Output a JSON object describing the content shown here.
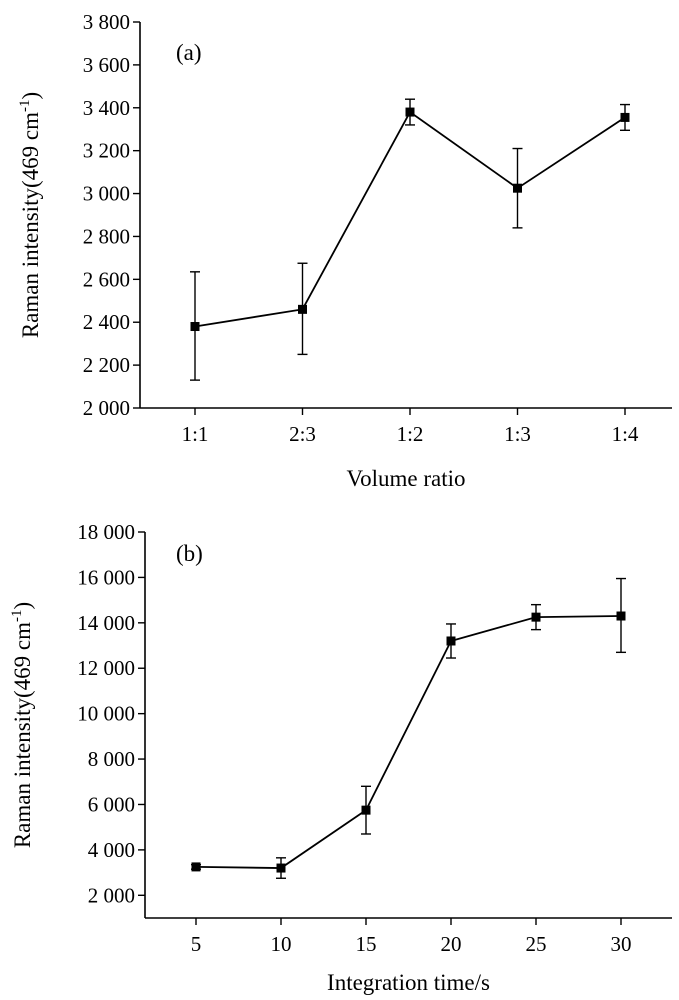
{
  "chart_data": [
    {
      "type": "line",
      "panel_label": "(a)",
      "xlabel": "Volume ratio",
      "ylabel_main": "Raman intensity(469 cm",
      "ylabel_sup": "-1",
      "ylabel_end": ")",
      "categories": [
        "1:1",
        "2:3",
        "1:2",
        "1:3",
        "1:4"
      ],
      "x_ticks": [
        "1:1",
        "2:3",
        "1:2",
        "1:3",
        "1:4"
      ],
      "ylim": [
        2000,
        3800
      ],
      "y_ticks": [
        2000,
        2200,
        2400,
        2600,
        2800,
        3000,
        3200,
        3400,
        3600,
        3800
      ],
      "y_tick_labels": [
        "2 000",
        "2 200",
        "2 400",
        "2 600",
        "2 800",
        "3 000",
        "3 200",
        "3 400",
        "3 600",
        "3 800"
      ],
      "grid": false,
      "series": [
        {
          "values": [
            2380,
            2460,
            3380,
            3025,
            3355
          ],
          "err_low": [
            2130,
            2250,
            3320,
            2840,
            3295
          ],
          "err_high": [
            2635,
            2675,
            3440,
            3210,
            3415
          ]
        }
      ]
    },
    {
      "type": "line",
      "panel_label": "(b)",
      "xlabel": "Integration time/s",
      "ylabel_main": "Raman intensity(469 cm",
      "ylabel_sup": "-1",
      "ylabel_end": ")",
      "x": [
        5,
        10,
        15,
        20,
        25,
        30
      ],
      "x_ticks": [
        "5",
        "10",
        "15",
        "20",
        "25",
        "30"
      ],
      "xlim": [
        2,
        33
      ],
      "ylim": [
        1000,
        18000
      ],
      "y_ticks": [
        2000,
        4000,
        6000,
        8000,
        10000,
        12000,
        14000,
        16000,
        18000
      ],
      "y_tick_labels": [
        "2 000",
        "4 000",
        "6 000",
        "8 000",
        "10 000",
        "12 000",
        "14 000",
        "16 000",
        "18 000"
      ],
      "grid": false,
      "series": [
        {
          "values": [
            3250,
            3200,
            5750,
            13200,
            14250,
            14300
          ],
          "err_low": [
            3150,
            2750,
            4700,
            12450,
            13700,
            12700
          ],
          "err_high": [
            3350,
            3650,
            6800,
            13950,
            14800,
            15950
          ]
        }
      ]
    }
  ]
}
